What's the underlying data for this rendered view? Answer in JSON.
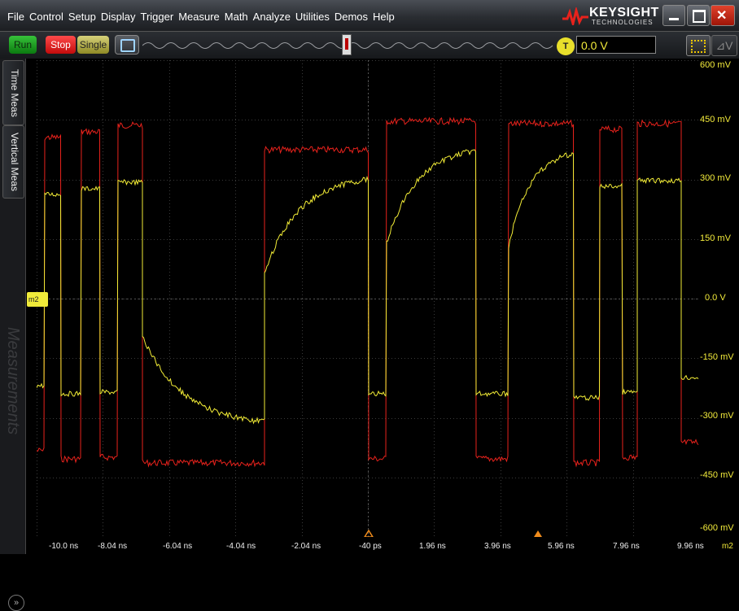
{
  "menu": [
    "File",
    "Control",
    "Setup",
    "Display",
    "Trigger",
    "Measure",
    "Math",
    "Analyze",
    "Utilities",
    "Demos",
    "Help"
  ],
  "brand": {
    "name": "KEYSIGHT",
    "sub": "TECHNOLOGIES"
  },
  "controls": {
    "run": "Run",
    "stop": "Stop",
    "single": "Single"
  },
  "trigger": {
    "icon": "T",
    "level": "0.0 V"
  },
  "tabs": {
    "time": "Time Meas",
    "vertical": "Vertical Meas"
  },
  "side_label": "Measurements",
  "marker": "m2",
  "y_labels": [
    "600 mV",
    "450 mV",
    "300 mV",
    "150 mV",
    "0.0 V",
    "-150 mV",
    "-300 mV",
    "-450 mV",
    "-600 mV"
  ],
  "x_labels": [
    "-10.0 ns",
    "-8.04 ns",
    "-6.04 ns",
    "-4.04 ns",
    "-2.04 ns",
    "-40 ps",
    "1.96 ns",
    "3.96 ns",
    "5.96 ns",
    "7.96 ns",
    "9.96 ns"
  ],
  "x_unit": "m2",
  "colors": {
    "accent": "#f3eb3b",
    "red_trace": "#e8221c",
    "yellow_trace": "#f2ec36"
  }
}
